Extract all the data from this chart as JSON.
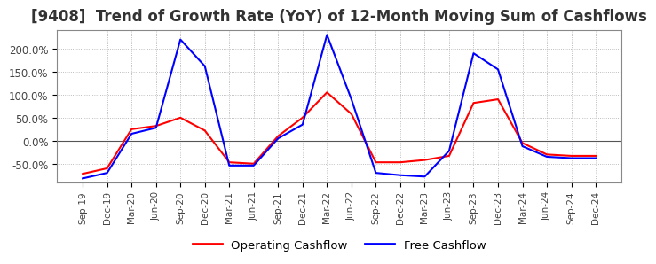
{
  "title": "[9408]  Trend of Growth Rate (YoY) of 12-Month Moving Sum of Cashflows",
  "title_fontsize": 12,
  "title_color": "#333333",
  "xlabel": "",
  "ylabel": "",
  "ylim": [
    -90,
    240
  ],
  "yticks": [
    -50,
    0,
    50,
    100,
    150,
    200
  ],
  "ytick_labels": [
    "-50.0%",
    "0.0%",
    "50.0%",
    "100.0%",
    "150.0%",
    "200.0%"
  ],
  "background_color": "#ffffff",
  "plot_bg_color": "#ffffff",
  "grid_color": "#aaaaaa",
  "legend_labels": [
    "Operating Cashflow",
    "Free Cashflow"
  ],
  "legend_colors": [
    "#ff0000",
    "#0000ff"
  ],
  "x_labels": [
    "Sep-19",
    "Dec-19",
    "Mar-20",
    "Jun-20",
    "Sep-20",
    "Dec-20",
    "Mar-21",
    "Jun-21",
    "Sep-21",
    "Dec-21",
    "Mar-22",
    "Jun-22",
    "Sep-22",
    "Dec-22",
    "Mar-23",
    "Jun-23",
    "Sep-23",
    "Dec-23",
    "Mar-24",
    "Jun-24",
    "Sep-24",
    "Dec-24"
  ],
  "operating_cashflow": [
    -72,
    -60,
    25,
    32,
    50,
    22,
    -47,
    -50,
    10,
    50,
    105,
    58,
    -47,
    -47,
    -42,
    -33,
    82,
    90,
    -5,
    -30,
    -33,
    -33
  ],
  "free_cashflow": [
    -82,
    -70,
    15,
    28,
    220,
    162,
    -54,
    -54,
    5,
    35,
    230,
    90,
    -70,
    -75,
    -78,
    -22,
    190,
    155,
    -12,
    -35,
    -38,
    -38
  ]
}
